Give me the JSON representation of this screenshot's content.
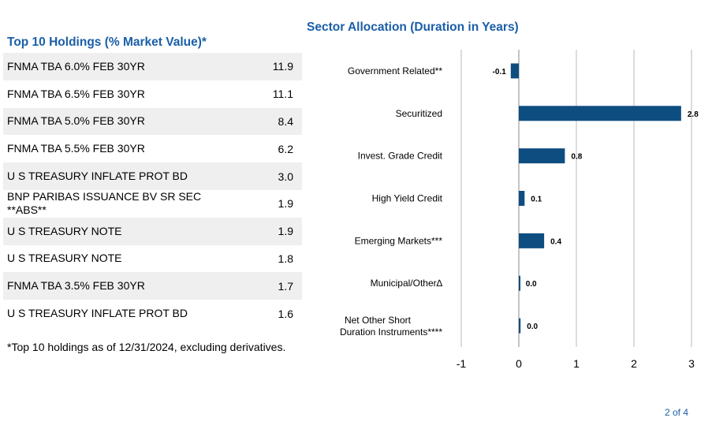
{
  "holdings": {
    "title": "Top 10 Holdings (% Market Value)*",
    "rows": [
      {
        "name": "FNMA TBA 6.0% FEB 30YR",
        "value": "11.9"
      },
      {
        "name": "FNMA TBA 6.5% FEB 30YR",
        "value": "11.1"
      },
      {
        "name": "FNMA TBA 5.0% FEB 30YR",
        "value": "8.4"
      },
      {
        "name": "FNMA TBA 5.5% FEB 30YR",
        "value": "6.2"
      },
      {
        "name": "U S TREASURY INFLATE PROT BD",
        "value": "3.0"
      },
      {
        "name": "BNP PARIBAS ISSUANCE BV SR SEC **ABS**",
        "value": "1.9"
      },
      {
        "name": "U S TREASURY NOTE",
        "value": "1.9"
      },
      {
        "name": "U S TREASURY NOTE",
        "value": "1.8"
      },
      {
        "name": "FNMA TBA 3.5% FEB 30YR",
        "value": "1.7"
      },
      {
        "name": "U S TREASURY INFLATE PROT BD",
        "value": "1.6"
      }
    ],
    "footnote": "*Top 10 holdings as of 12/31/2024, excluding derivatives."
  },
  "chart_data": {
    "type": "bar",
    "orientation": "horizontal",
    "title": "Sector Allocation (Duration in Years)",
    "categories": [
      "Government Related**",
      "Securitized",
      "Invest. Grade Credit",
      "High Yield Credit",
      "Emerging Markets***",
      "Municipal/Other∆",
      "Net Other Short Duration Instruments****"
    ],
    "values": [
      -0.14,
      2.82,
      0.8,
      0.1,
      0.44,
      0.01,
      0.03
    ],
    "data_labels": [
      "-0.1",
      "2.8",
      "0.8",
      "0.1",
      "0.4",
      "0.0",
      "0.0"
    ],
    "xlim": [
      -1,
      3
    ],
    "x_ticks": [
      -1,
      0,
      1,
      2,
      3
    ],
    "x_tick_labels": [
      "-1",
      "0",
      "1",
      "2",
      "3"
    ],
    "grid": "vertical",
    "bar_color": "#0e4d80"
  },
  "footer": {
    "page": "2 of 4"
  }
}
